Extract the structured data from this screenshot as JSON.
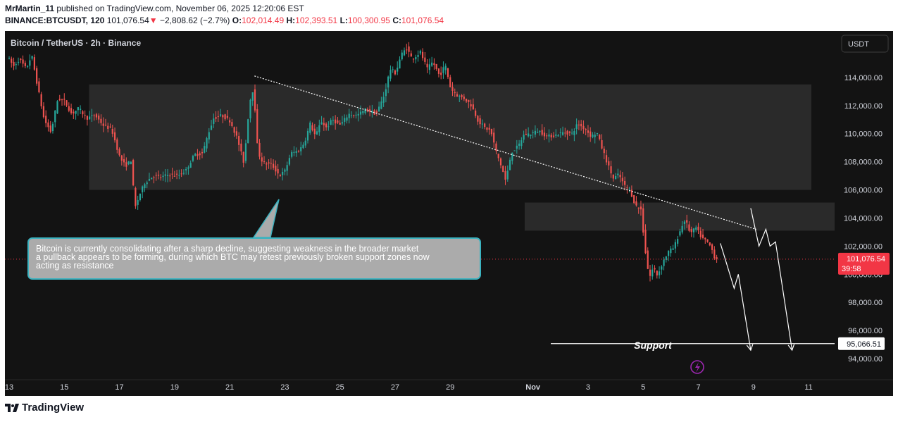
{
  "header": {
    "author": "MrMartin_11",
    "published_text": "published on TradingView.com, November 06, 2025 12:20:06 EST",
    "symbol": "BINANCE:BTCUSDT, 120",
    "last_price": "101,076.54",
    "change_arrow": "▼",
    "change": "−2,808.62 (−2.7%)",
    "o_label": "O:",
    "o_value": "102,014.49",
    "h_label": "H:",
    "h_value": "102,393.51",
    "l_label": "L:",
    "l_value": "100,300.95",
    "c_label": "C:",
    "c_value": "101,076.54"
  },
  "chart_title": "Bitcoin / TetherUS · 2h · Binance",
  "currency_button": "USDT",
  "annotation": {
    "lines": [
      "Bitcoin is currently consolidating after a sharp decline, suggesting weakness in the broader market",
      "a pullback appears to be forming, during which BTC may retest previously broken support zones now",
      " acting as resistance"
    ]
  },
  "support_label": "Support",
  "price_tag": {
    "price": "101,076.54",
    "countdown": "39:58"
  },
  "support_tag": "95,066.51",
  "brand": "TradingView",
  "colors": {
    "background": "#131313",
    "bull": "#26a69a",
    "bear": "#ef5350",
    "price_tag": "#f23645",
    "note_border": "#3bb3c0",
    "zone": "#3a3a3a"
  },
  "chart_data": {
    "type": "candlestick",
    "title": "Bitcoin / TetherUS · 2h · Binance",
    "ylim": [
      92500,
      117300
    ],
    "y_ticks": [
      94000,
      96000,
      98000,
      100000,
      102000,
      104000,
      106000,
      108000,
      110000,
      112000,
      114000
    ],
    "y_tick_labels": [
      "94,000.00",
      "96,000.00",
      "98,000.00",
      "100,000.00",
      "102,000.00",
      "104,000.00",
      "106,000.00",
      "108,000.00",
      "110,000.00",
      "112,000.00",
      "114,000.00"
    ],
    "x_ticks": [
      {
        "t": 0,
        "label": "13"
      },
      {
        "t": 2,
        "label": "15"
      },
      {
        "t": 4,
        "label": "17"
      },
      {
        "t": 6,
        "label": "19"
      },
      {
        "t": 8,
        "label": "21"
      },
      {
        "t": 10,
        "label": "23"
      },
      {
        "t": 12,
        "label": "25"
      },
      {
        "t": 14,
        "label": "27"
      },
      {
        "t": 16,
        "label": "29"
      },
      {
        "t": 19,
        "label": "Nov"
      },
      {
        "t": 21,
        "label": "3"
      },
      {
        "t": 23,
        "label": "5"
      },
      {
        "t": 25,
        "label": "7"
      },
      {
        "t": 27,
        "label": "9"
      },
      {
        "t": 29,
        "label": "11"
      }
    ],
    "path": [
      [
        0.0,
        115500
      ],
      [
        0.25,
        114800
      ],
      [
        0.45,
        115300
      ],
      [
        0.7,
        114600
      ],
      [
        0.9,
        115600
      ],
      [
        1.1,
        113500
      ],
      [
        1.35,
        111000
      ],
      [
        1.6,
        110100
      ],
      [
        1.85,
        112500
      ],
      [
        2.1,
        112300
      ],
      [
        2.35,
        111400
      ],
      [
        2.6,
        111800
      ],
      [
        2.9,
        111100
      ],
      [
        3.2,
        111300
      ],
      [
        3.5,
        110600
      ],
      [
        3.8,
        110300
      ],
      [
        4.1,
        108300
      ],
      [
        4.3,
        107700
      ],
      [
        4.5,
        108100
      ],
      [
        4.65,
        104700
      ],
      [
        4.8,
        105600
      ],
      [
        5.0,
        106500
      ],
      [
        5.3,
        107000
      ],
      [
        5.6,
        106900
      ],
      [
        5.9,
        107100
      ],
      [
        6.2,
        107000
      ],
      [
        6.5,
        107400
      ],
      [
        6.8,
        108500
      ],
      [
        7.1,
        108600
      ],
      [
        7.3,
        110000
      ],
      [
        7.5,
        111100
      ],
      [
        7.8,
        111300
      ],
      [
        8.1,
        110900
      ],
      [
        8.35,
        109700
      ],
      [
        8.6,
        107900
      ],
      [
        8.8,
        112200
      ],
      [
        8.95,
        113300
      ],
      [
        9.1,
        108700
      ],
      [
        9.3,
        107900
      ],
      [
        9.6,
        107800
      ],
      [
        9.9,
        107000
      ],
      [
        10.1,
        107400
      ],
      [
        10.3,
        108600
      ],
      [
        10.6,
        108800
      ],
      [
        10.8,
        109400
      ],
      [
        11.0,
        110700
      ],
      [
        11.2,
        109800
      ],
      [
        11.4,
        110900
      ],
      [
        11.6,
        110400
      ],
      [
        11.8,
        111000
      ],
      [
        12.1,
        110600
      ],
      [
        12.4,
        111400
      ],
      [
        12.7,
        111300
      ],
      [
        13.0,
        111700
      ],
      [
        13.2,
        111600
      ],
      [
        13.4,
        111400
      ],
      [
        13.7,
        112800
      ],
      [
        13.9,
        114600
      ],
      [
        14.1,
        114300
      ],
      [
        14.3,
        115600
      ],
      [
        14.5,
        116100
      ],
      [
        14.7,
        115300
      ],
      [
        15.0,
        115800
      ],
      [
        15.25,
        114600
      ],
      [
        15.45,
        115100
      ],
      [
        15.7,
        114100
      ],
      [
        15.9,
        114900
      ],
      [
        16.1,
        113200
      ],
      [
        16.35,
        112700
      ],
      [
        16.6,
        112500
      ],
      [
        16.85,
        112000
      ],
      [
        17.1,
        110900
      ],
      [
        17.35,
        110400
      ],
      [
        17.55,
        110200
      ],
      [
        17.75,
        108700
      ],
      [
        17.95,
        107600
      ],
      [
        18.1,
        106600
      ],
      [
        18.3,
        108700
      ],
      [
        18.55,
        109100
      ],
      [
        18.75,
        109900
      ],
      [
        19.0,
        110000
      ],
      [
        19.3,
        110200
      ],
      [
        19.6,
        109800
      ],
      [
        19.9,
        109900
      ],
      [
        20.2,
        110100
      ],
      [
        20.5,
        110000
      ],
      [
        20.7,
        110700
      ],
      [
        21.0,
        110300
      ],
      [
        21.2,
        109800
      ],
      [
        21.4,
        110100
      ],
      [
        21.6,
        108900
      ],
      [
        21.8,
        107800
      ],
      [
        22.0,
        106800
      ],
      [
        22.2,
        107100
      ],
      [
        22.4,
        106300
      ],
      [
        22.6,
        106000
      ],
      [
        22.8,
        104900
      ],
      [
        23.0,
        104600
      ],
      [
        23.15,
        101800
      ],
      [
        23.3,
        99700
      ],
      [
        23.45,
        100500
      ],
      [
        23.6,
        99900
      ],
      [
        23.8,
        100900
      ],
      [
        24.0,
        101600
      ],
      [
        24.2,
        101900
      ],
      [
        24.4,
        103000
      ],
      [
        24.6,
        103900
      ],
      [
        24.8,
        102900
      ],
      [
        25.0,
        103300
      ],
      [
        25.2,
        102600
      ],
      [
        25.4,
        102300
      ],
      [
        25.55,
        101900
      ],
      [
        25.7,
        101076
      ]
    ],
    "zones": [
      {
        "t0": 2.9,
        "t1": 29.1,
        "low": 106000,
        "high": 113500
      },
      {
        "t0": 18.7,
        "t1": 32.6,
        "low": 103100,
        "high": 105100
      }
    ],
    "trendline": [
      [
        8.9,
        108500
      ],
      [
        32.2,
        109100
      ]
    ],
    "trendline_note": "dotted descending resistance line",
    "resistance_trendline": [
      [
        8.9,
        114100
      ],
      [
        27.1,
        103200
      ]
    ],
    "support_level": 95066.51,
    "projection_paths": [
      [
        [
          25.8,
          102200
        ],
        [
          26.3,
          99000
        ],
        [
          26.45,
          100000
        ],
        [
          26.9,
          94600
        ]
      ],
      [
        [
          26.9,
          104700
        ],
        [
          27.2,
          102000
        ],
        [
          27.45,
          103200
        ],
        [
          27.6,
          102000
        ],
        [
          27.8,
          102300
        ],
        [
          28.4,
          94600
        ]
      ]
    ],
    "last_price": 101076.54
  }
}
